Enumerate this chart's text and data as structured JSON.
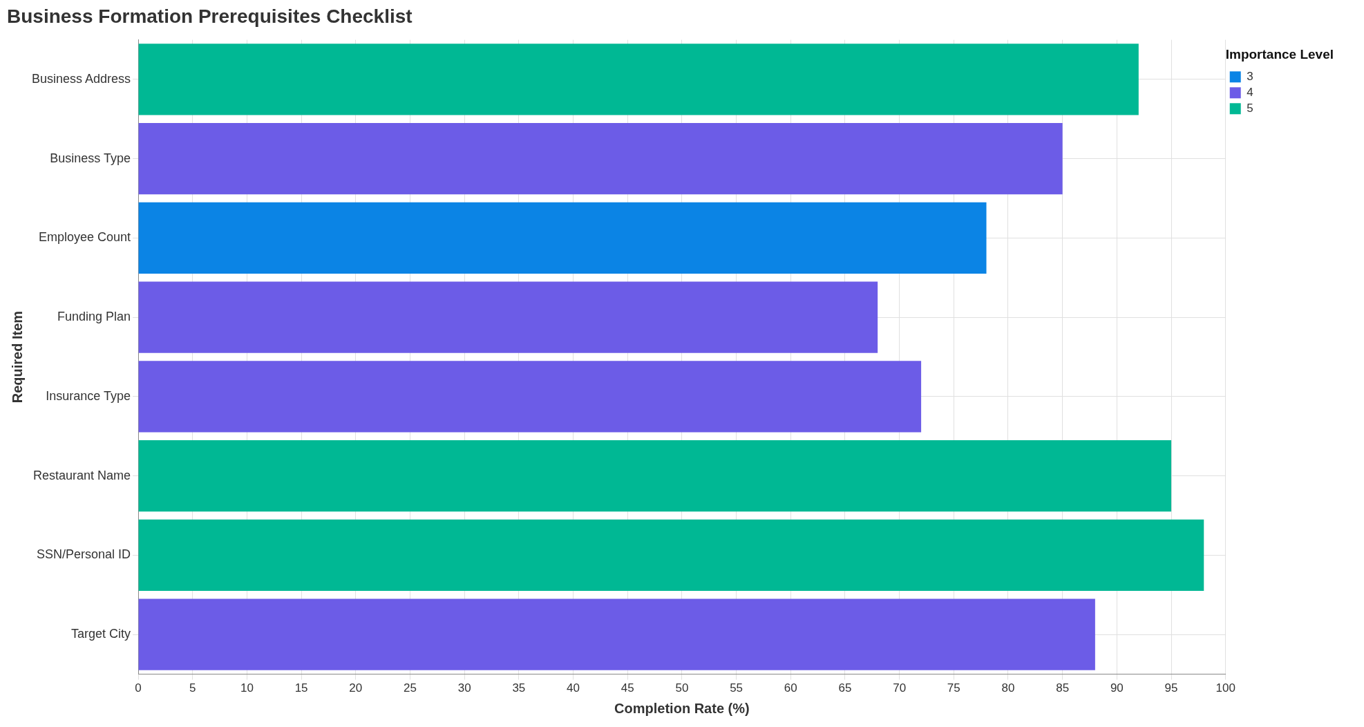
{
  "chart_data": {
    "type": "bar",
    "orientation": "horizontal",
    "title": "Business Formation Prerequisites Checklist",
    "xlabel": "Completion Rate (%)",
    "ylabel": "Required Item",
    "legend_title": "Importance Level",
    "categories": [
      "Business Address",
      "Business Type",
      "Employee Count",
      "Funding Plan",
      "Insurance Type",
      "Restaurant Name",
      "SSN/Personal ID",
      "Target City"
    ],
    "series": [
      {
        "name": "3",
        "color": "#0b84e5",
        "values": [
          null,
          null,
          78,
          null,
          null,
          null,
          null,
          null
        ]
      },
      {
        "name": "4",
        "color": "#6c5ce7",
        "values": [
          null,
          85,
          null,
          68,
          72,
          null,
          null,
          88
        ]
      },
      {
        "name": "5",
        "color": "#00b894",
        "values": [
          92,
          null,
          null,
          null,
          null,
          95,
          98,
          null
        ]
      }
    ],
    "xlim": [
      0,
      100
    ],
    "xticks": [
      0,
      5,
      10,
      15,
      20,
      25,
      30,
      35,
      40,
      45,
      50,
      55,
      60,
      65,
      70,
      75,
      80,
      85,
      90,
      95,
      100
    ],
    "grid": true,
    "legend": "top right"
  }
}
